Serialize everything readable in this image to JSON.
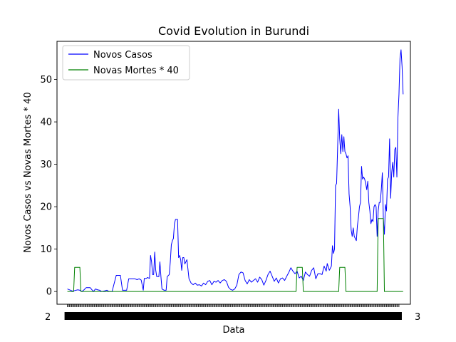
{
  "chart_data": {
    "type": "line",
    "title": "Covid Evolution in Burundi",
    "xlabel": "Data",
    "ylabel": "Novos Casos vs Novas Mortes * 40",
    "xlim": [
      -10,
      330
    ],
    "ylim": [
      -3,
      59
    ],
    "yticks": [
      0,
      10,
      20,
      30,
      40,
      50
    ],
    "grid": false,
    "legend": "top-left",
    "x_tick_count": 320,
    "x_tick_label_left": "2",
    "x_tick_label_right": "3",
    "series": [
      {
        "name": "Novos Casos",
        "color": "#0000ff",
        "points": [
          [
            0,
            0.6
          ],
          [
            5,
            0.1
          ],
          [
            10,
            0.4
          ],
          [
            12,
            0.3
          ],
          [
            14,
            0
          ],
          [
            16,
            0.4
          ],
          [
            18,
            0.9
          ],
          [
            22,
            0.9
          ],
          [
            25,
            0
          ],
          [
            27,
            0.6
          ],
          [
            29,
            0.4
          ],
          [
            31,
            0.3
          ],
          [
            33,
            0
          ],
          [
            35,
            0.1
          ],
          [
            38,
            0.3
          ],
          [
            40,
            0
          ],
          [
            43,
            0
          ],
          [
            47,
            3.8
          ],
          [
            51,
            3.8
          ],
          [
            53,
            0.3
          ],
          [
            55,
            0.3
          ],
          [
            57,
            0.3
          ],
          [
            59,
            3.0
          ],
          [
            62,
            3.0
          ],
          [
            65,
            3.0
          ],
          [
            67,
            2.8
          ],
          [
            69,
            3.0
          ],
          [
            71,
            2.7
          ],
          [
            73,
            0.3
          ],
          [
            74,
            3.1
          ],
          [
            76,
            3.1
          ],
          [
            77,
            3.3
          ],
          [
            79,
            3.1
          ],
          [
            80,
            8.5
          ],
          [
            81,
            7.0
          ],
          [
            82,
            4.0
          ],
          [
            83,
            4.0
          ],
          [
            84,
            9.3
          ],
          [
            85,
            5.0
          ],
          [
            86,
            3.5
          ],
          [
            88,
            3.5
          ],
          [
            89,
            7.0
          ],
          [
            90,
            3.5
          ],
          [
            91,
            0.6
          ],
          [
            93,
            0.3
          ],
          [
            95,
            0.3
          ],
          [
            96,
            3.5
          ],
          [
            98,
            4.0
          ],
          [
            99,
            7.0
          ],
          [
            100,
            11.0
          ],
          [
            101,
            12.0
          ],
          [
            102,
            12.5
          ],
          [
            103,
            16.0
          ],
          [
            104,
            17.0
          ],
          [
            106,
            17.0
          ],
          [
            107,
            8.0
          ],
          [
            108,
            8.5
          ],
          [
            109,
            7.5
          ],
          [
            110,
            5.0
          ],
          [
            111,
            8.0
          ],
          [
            112,
            8.0
          ],
          [
            113,
            6.5
          ],
          [
            115,
            7.5
          ],
          [
            117,
            3.0
          ],
          [
            119,
            2.0
          ],
          [
            121,
            1.6
          ],
          [
            123,
            2.0
          ],
          [
            125,
            1.5
          ],
          [
            127,
            1.6
          ],
          [
            129,
            1.3
          ],
          [
            131,
            2.0
          ],
          [
            133,
            1.6
          ],
          [
            135,
            2.4
          ],
          [
            137,
            2.6
          ],
          [
            139,
            1.6
          ],
          [
            141,
            2.4
          ],
          [
            143,
            2.2
          ],
          [
            145,
            2.6
          ],
          [
            147,
            2.0
          ],
          [
            149,
            2.6
          ],
          [
            151,
            2.8
          ],
          [
            153,
            2.4
          ],
          [
            155,
            1.0
          ],
          [
            157,
            0.5
          ],
          [
            159,
            0.3
          ],
          [
            161,
            0.6
          ],
          [
            163,
            1.5
          ],
          [
            165,
            4.0
          ],
          [
            167,
            4.6
          ],
          [
            169,
            4.4
          ],
          [
            171,
            2.6
          ],
          [
            173,
            1.8
          ],
          [
            175,
            2.8
          ],
          [
            177,
            2.2
          ],
          [
            179,
            2.6
          ],
          [
            181,
            3.0
          ],
          [
            183,
            2.2
          ],
          [
            185,
            3.4
          ],
          [
            187,
            2.8
          ],
          [
            189,
            1.5
          ],
          [
            191,
            2.6
          ],
          [
            193,
            4.0
          ],
          [
            195,
            4.8
          ],
          [
            197,
            3.6
          ],
          [
            199,
            2.4
          ],
          [
            201,
            3.2
          ],
          [
            203,
            2.0
          ],
          [
            205,
            3.0
          ],
          [
            207,
            3.2
          ],
          [
            209,
            2.6
          ],
          [
            211,
            3.6
          ],
          [
            213,
            4.5
          ],
          [
            215,
            5.6
          ],
          [
            217,
            4.8
          ],
          [
            219,
            4.2
          ],
          [
            221,
            4.8
          ],
          [
            223,
            3.2
          ],
          [
            225,
            3.6
          ],
          [
            227,
            2.6
          ],
          [
            229,
            4.6
          ],
          [
            231,
            4.0
          ],
          [
            233,
            3.6
          ],
          [
            235,
            5.0
          ],
          [
            237,
            5.6
          ],
          [
            239,
            3.0
          ],
          [
            241,
            4.2
          ],
          [
            243,
            4.2
          ],
          [
            245,
            4.0
          ],
          [
            246,
            5.0
          ],
          [
            247,
            6.0
          ],
          [
            249,
            4.8
          ],
          [
            250,
            6.6
          ],
          [
            252,
            5.0
          ],
          [
            254,
            6.0
          ],
          [
            255,
            10.8
          ],
          [
            256,
            9.0
          ],
          [
            257,
            10.0
          ],
          [
            258,
            25.0
          ],
          [
            259,
            25.5
          ],
          [
            260,
            34.0
          ],
          [
            261,
            43.0
          ],
          [
            262,
            36.0
          ],
          [
            263,
            32.5
          ],
          [
            264,
            37.0
          ],
          [
            265,
            33.0
          ],
          [
            266,
            36.5
          ],
          [
            267,
            33.0
          ],
          [
            268,
            32.5
          ],
          [
            269,
            31.5
          ],
          [
            270,
            32.0
          ],
          [
            271,
            23.0
          ],
          [
            272,
            20.0
          ],
          [
            273,
            14.5
          ],
          [
            274,
            13.0
          ],
          [
            275,
            15.0
          ],
          [
            276,
            13.0
          ],
          [
            277,
            12.5
          ],
          [
            278,
            12.0
          ],
          [
            279,
            15.5
          ],
          [
            280,
            17.5
          ],
          [
            281,
            20.0
          ],
          [
            282,
            21.0
          ],
          [
            283,
            29.5
          ],
          [
            284,
            26.5
          ],
          [
            285,
            27.0
          ],
          [
            286,
            26.5
          ],
          [
            287,
            25.5
          ],
          [
            288,
            24.0
          ],
          [
            289,
            26.0
          ],
          [
            290,
            21.0
          ],
          [
            291,
            19.0
          ],
          [
            292,
            16.0
          ],
          [
            293,
            17.0
          ],
          [
            294,
            16.5
          ],
          [
            295,
            20.0
          ],
          [
            296,
            20.5
          ],
          [
            297,
            20.0
          ],
          [
            298,
            13.0
          ],
          [
            299,
            19.0
          ],
          [
            300,
            21.0
          ],
          [
            301,
            21.0
          ],
          [
            302,
            24.0
          ],
          [
            303,
            28.0
          ],
          [
            304,
            17.0
          ],
          [
            305,
            13.5
          ],
          [
            306,
            20.5
          ],
          [
            307,
            19.0
          ],
          [
            308,
            26.5
          ],
          [
            309,
            27.0
          ],
          [
            310,
            36.0
          ],
          [
            311,
            22.0
          ],
          [
            312,
            28.0
          ],
          [
            313,
            30.5
          ],
          [
            314,
            27.0
          ],
          [
            315,
            33.5
          ],
          [
            316,
            34.0
          ],
          [
            317,
            27.0
          ],
          [
            318,
            41.0
          ],
          [
            319,
            46.5
          ],
          [
            320,
            55.0
          ],
          [
            321,
            57.0
          ],
          [
            322,
            53.0
          ],
          [
            323,
            46.5
          ]
        ]
      },
      {
        "name": "Novas Mortes * 40",
        "color": "#008000",
        "points": [
          [
            0,
            0
          ],
          [
            6,
            0
          ],
          [
            7,
            5.7
          ],
          [
            12,
            5.7
          ],
          [
            13,
            0
          ],
          [
            220,
            0
          ],
          [
            221,
            5.7
          ],
          [
            226,
            5.7
          ],
          [
            227,
            0
          ],
          [
            261,
            0
          ],
          [
            262,
            5.7
          ],
          [
            267,
            5.7
          ],
          [
            268,
            0
          ],
          [
            298,
            0
          ],
          [
            299,
            17.2
          ],
          [
            304,
            17.2
          ],
          [
            305,
            0
          ],
          [
            323,
            0
          ]
        ]
      }
    ]
  }
}
